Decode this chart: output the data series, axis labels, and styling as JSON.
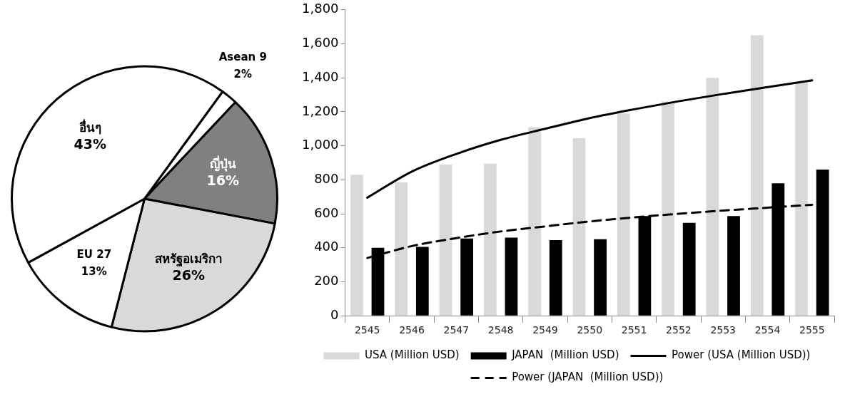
{
  "chart_data": [
    {
      "type": "pie",
      "categories": [
        "Asean 9",
        "ญี่ปุ่น",
        "สหรัฐอเมริกา",
        "EU 27",
        "อื่นๆ"
      ],
      "values": [
        2,
        16,
        26,
        13,
        43
      ],
      "colors": [
        "#ffffff",
        "#808080",
        "#d9d9d9",
        "#ffffff",
        "#ffffff"
      ],
      "value_labels": [
        "2%",
        "16%",
        "26%",
        "13%",
        "43%"
      ]
    },
    {
      "type": "bar",
      "categories": [
        "2545",
        "2546",
        "2547",
        "2548",
        "2549",
        "2550",
        "2551",
        "2552",
        "2553",
        "2554",
        "2555"
      ],
      "series": [
        {
          "name": "USA (Million USD)",
          "color": "#d9d9d9",
          "values": [
            830,
            785,
            890,
            895,
            1110,
            1045,
            1190,
            1260,
            1400,
            1650,
            1375
          ]
        },
        {
          "name": "JAPAN  (Million USD)",
          "color": "#000000",
          "values": [
            400,
            405,
            455,
            460,
            445,
            450,
            587,
            547,
            587,
            780,
            860
          ]
        },
        {
          "name": "Power (USA (Million USD))",
          "type": "line",
          "line_style": "solid",
          "color": "#000000",
          "values": [
            695,
            848,
            952,
            1035,
            1100,
            1163,
            1215,
            1262,
            1305,
            1345,
            1385
          ]
        },
        {
          "name": "Power (JAPAN  (Million USD))",
          "type": "line",
          "line_style": "dashed",
          "color": "#000000",
          "values": [
            340,
            410,
            457,
            496,
            526,
            555,
            579,
            600,
            619,
            636,
            653
          ]
        }
      ],
      "ylim": [
        0,
        1800
      ],
      "yticks": [
        0,
        200,
        400,
        600,
        800,
        {
          "value": 1000,
          "label": "1,000"
        },
        {
          "value": 1200,
          "label": "1,200"
        },
        {
          "value": 1400,
          "label": "1,400"
        },
        {
          "value": 1600,
          "label": "1,600"
        },
        {
          "value": 1800,
          "label": "1,800"
        }
      ],
      "grid": false,
      "marker": "none",
      "legend": "bottom"
    }
  ]
}
